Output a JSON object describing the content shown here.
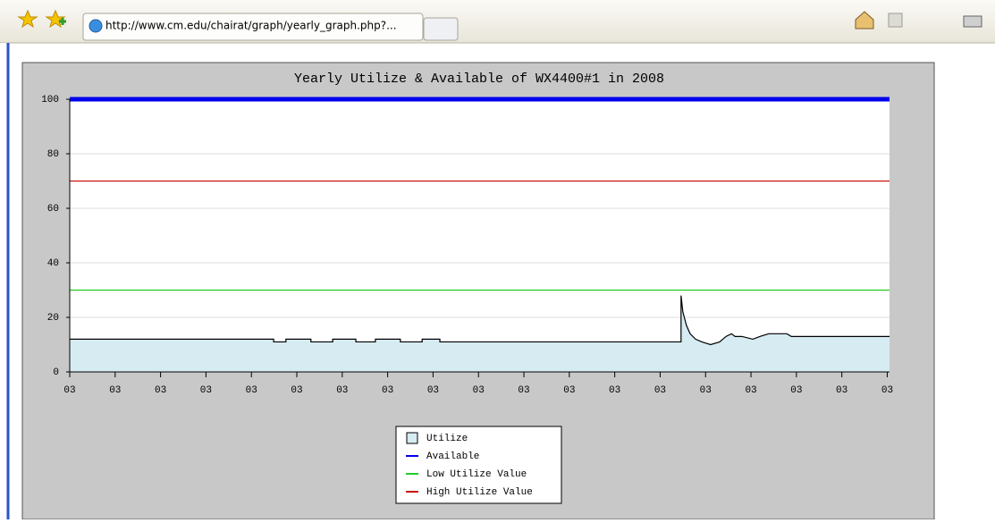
{
  "browser": {
    "tab": {
      "url": "http://www.cm.edu/chairat/graph/yearly_graph.php?..."
    }
  },
  "chart_data": {
    "type": "line",
    "title": "Yearly Utilize & Available of WX4400#1 in 2008",
    "xlim": [
      0,
      18.05
    ],
    "ylim": [
      0,
      100
    ],
    "yticks": [
      0,
      20,
      40,
      60,
      80,
      100
    ],
    "xticks": [
      {
        "value": 0,
        "label": "03"
      },
      {
        "value": 1,
        "label": "03"
      },
      {
        "value": 2,
        "label": "03"
      },
      {
        "value": 3,
        "label": "03"
      },
      {
        "value": 4,
        "label": "03"
      },
      {
        "value": 5,
        "label": "03"
      },
      {
        "value": 6,
        "label": "03"
      },
      {
        "value": 7,
        "label": "03"
      },
      {
        "value": 8,
        "label": "03"
      },
      {
        "value": 9,
        "label": "03"
      },
      {
        "value": 10,
        "label": "03"
      },
      {
        "value": 11,
        "label": "03"
      },
      {
        "value": 12,
        "label": "03"
      },
      {
        "value": 13,
        "label": "03"
      },
      {
        "value": 14,
        "label": "03"
      },
      {
        "value": 15,
        "label": "03"
      },
      {
        "value": 16,
        "label": "03"
      },
      {
        "value": 17,
        "label": "03"
      },
      {
        "value": 18,
        "label": "03"
      }
    ],
    "grid": true,
    "legend": "bottom",
    "series": [
      {
        "name": "Utilize",
        "color": "#000000",
        "fill": "#d6ebf2",
        "line_width": 1.2,
        "x": [
          0,
          4.49,
          4.49,
          4.76,
          4.76,
          5.31,
          5.31,
          5.79,
          5.79,
          6.3,
          6.3,
          6.73,
          6.73,
          7.28,
          7.28,
          7.76,
          7.76,
          8.15,
          8.15,
          13.46,
          13.46,
          13.5,
          13.58,
          13.66,
          13.78,
          13.92,
          14.11,
          14.31,
          14.45,
          14.57,
          14.65,
          14.8,
          15.04,
          15.2,
          15.39,
          15.79,
          15.89,
          18.05
        ],
        "values": [
          12,
          12,
          11,
          11,
          12,
          12,
          11,
          11,
          12,
          12,
          11,
          11,
          12,
          12,
          11,
          11,
          12,
          12,
          11,
          11,
          28,
          22,
          17,
          14,
          12,
          11,
          10,
          11,
          13,
          14,
          13,
          13,
          12,
          13,
          14,
          14,
          13,
          13
        ]
      },
      {
        "name": "Available",
        "color": "#0000ee",
        "line_width": 5,
        "x": [
          0,
          18.05
        ],
        "values": [
          100,
          100
        ]
      },
      {
        "name": "Low Utilize Value",
        "color": "#22cc22",
        "line_width": 1.3,
        "x": [
          0,
          18.05
        ],
        "values": [
          30,
          30
        ]
      },
      {
        "name": "High Utilize Value",
        "color": "#cc1111",
        "line_width": 1.3,
        "x": [
          0,
          18.05
        ],
        "values": [
          70,
          70
        ]
      }
    ]
  }
}
